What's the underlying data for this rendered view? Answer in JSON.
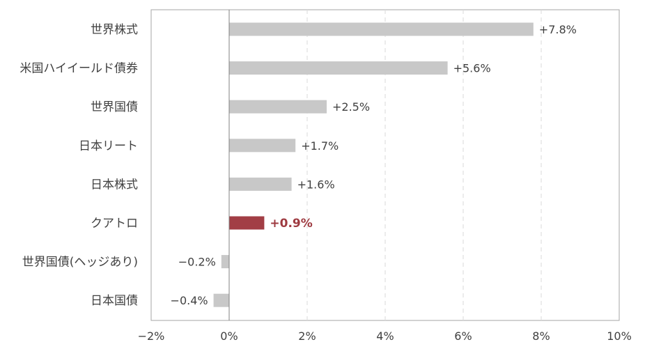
{
  "chart_data": {
    "type": "bar",
    "orientation": "horizontal",
    "title": "",
    "xlabel": "",
    "ylabel": "",
    "categories": [
      "世界株式",
      "米国ハイイールド債券",
      "世界国債",
      "日本リート",
      "日本株式",
      "クアトロ",
      "世界国債(ヘッジあり)",
      "日本国債"
    ],
    "values": [
      7.8,
      5.6,
      2.5,
      1.7,
      1.6,
      0.9,
      -0.2,
      -0.4
    ],
    "value_labels": [
      "+7.8%",
      "+5.6%",
      "+2.5%",
      "+1.7%",
      "+1.6%",
      "+0.9%",
      "−0.2%",
      "−0.4%"
    ],
    "highlight_category": "クアトロ",
    "xlim": [
      -2,
      10
    ],
    "x_ticks": [
      -2,
      0,
      2,
      4,
      6,
      8,
      10
    ],
    "x_tick_labels": [
      "−2%",
      "0%",
      "2%",
      "4%",
      "6%",
      "8%",
      "10%"
    ],
    "grid": "vertical dashed",
    "colors": {
      "bar": "#c8c8c8",
      "highlight": "#a23e45",
      "highlight_text": "#9e3a40",
      "axis": "#808080",
      "grid": "#d9d9d9",
      "border": "#a6a6a6"
    }
  }
}
